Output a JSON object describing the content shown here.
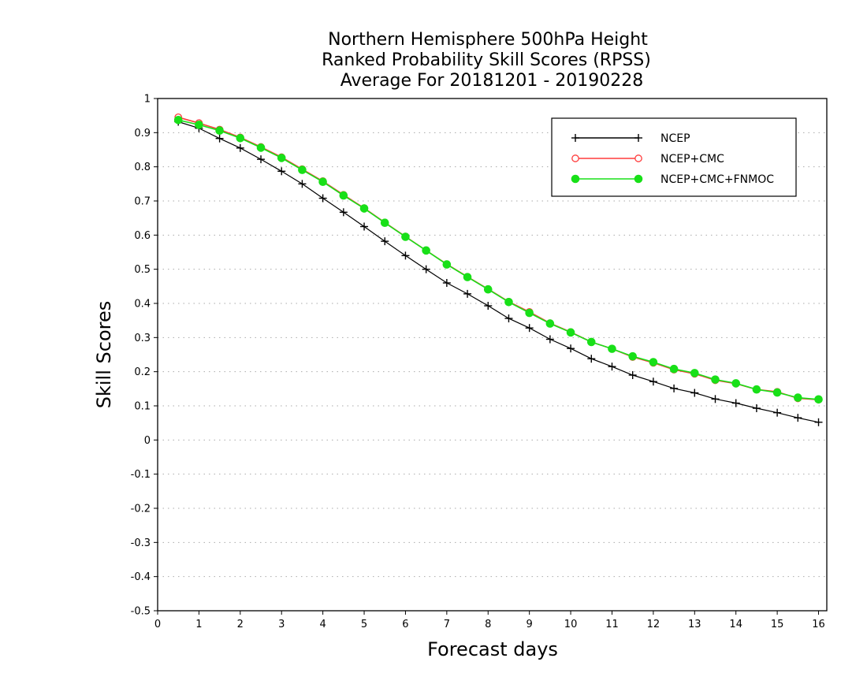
{
  "chart_data": {
    "type": "line",
    "title_lines": [
      "Northern Hemisphere 500hPa Height",
      "Ranked Probability Skill Scores (RPSS)",
      "Average For 20181201 - 20190228"
    ],
    "xlabel": "Forecast days",
    "ylabel": "Skill Scores",
    "xlim": [
      0,
      16.2
    ],
    "ylim": [
      -0.5,
      1
    ],
    "x_ticks": [
      0,
      1,
      2,
      3,
      4,
      5,
      6,
      7,
      8,
      9,
      10,
      11,
      12,
      13,
      14,
      15,
      16
    ],
    "x_tick_labels": [
      "0",
      "1",
      "2",
      "3",
      "4",
      "5",
      "6",
      "7",
      "8",
      "9",
      "10",
      "11",
      "12",
      "13",
      "14",
      "15",
      "16"
    ],
    "y_ticks": [
      -0.5,
      -0.4,
      -0.3,
      -0.2,
      -0.1,
      0,
      0.1,
      0.2,
      0.3,
      0.4,
      0.5,
      0.6,
      0.7,
      0.8,
      0.9,
      1
    ],
    "y_tick_labels": [
      "-0.5",
      "-0.4",
      "-0.3",
      "-0.2",
      "-0.1",
      "0",
      "0.1",
      "0.2",
      "0.3",
      "0.4",
      "0.5",
      "0.6",
      "0.7",
      "0.8",
      "0.9",
      "1"
    ],
    "grid": "dotted horizontal",
    "legend_position": "top-right",
    "x": [
      0.5,
      1,
      1.5,
      2,
      2.5,
      3,
      3.5,
      4,
      4.5,
      5,
      5.5,
      6,
      6.5,
      7,
      7.5,
      8,
      8.5,
      9,
      9.5,
      10,
      10.5,
      11,
      11.5,
      12,
      12.5,
      13,
      13.5,
      14,
      14.5,
      15,
      15.5,
      16
    ],
    "series": [
      {
        "name": "NCEP",
        "color": "#000000",
        "marker": "plus",
        "values": [
          0.932,
          0.913,
          0.883,
          0.855,
          0.822,
          0.787,
          0.75,
          0.708,
          0.667,
          0.625,
          0.582,
          0.54,
          0.5,
          0.46,
          0.428,
          0.393,
          0.356,
          0.328,
          0.295,
          0.268,
          0.238,
          0.215,
          0.19,
          0.171,
          0.151,
          0.138,
          0.12,
          0.108,
          0.093,
          0.08,
          0.065,
          0.052
        ]
      },
      {
        "name": "NCEP+CMC",
        "color": "#ff3b3b",
        "marker": "open-circle",
        "values": [
          0.945,
          0.928,
          0.909,
          0.886,
          0.858,
          0.828,
          0.793,
          0.758,
          0.718,
          0.679,
          0.637,
          0.596,
          0.555,
          0.515,
          0.478,
          0.442,
          0.405,
          0.375,
          0.342,
          0.316,
          0.287,
          0.267,
          0.243,
          0.226,
          0.206,
          0.194,
          0.175,
          0.165,
          0.148,
          0.141,
          0.122,
          0.118
        ]
      },
      {
        "name": "NCEP+CMC+FNMOC",
        "color": "#18e018",
        "marker": "filled-circle",
        "values": [
          0.937,
          0.923,
          0.906,
          0.884,
          0.856,
          0.826,
          0.791,
          0.756,
          0.716,
          0.678,
          0.636,
          0.595,
          0.555,
          0.514,
          0.477,
          0.441,
          0.404,
          0.372,
          0.341,
          0.315,
          0.287,
          0.267,
          0.245,
          0.228,
          0.208,
          0.196,
          0.177,
          0.166,
          0.148,
          0.139,
          0.124,
          0.119
        ]
      }
    ]
  }
}
